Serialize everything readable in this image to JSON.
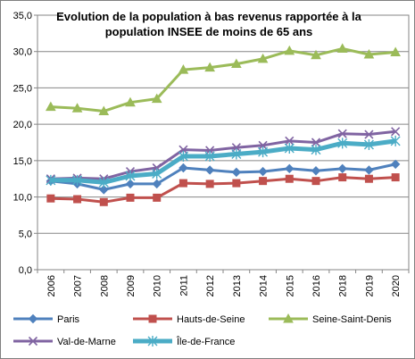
{
  "chart_data": {
    "type": "line",
    "title_lines": [
      "Evolution de la population à bas revenus rapportée à la",
      "population INSEE de moins de 65  ans"
    ],
    "x": [
      "2006",
      "2007",
      "2008",
      "2009",
      "2010",
      "2011",
      "2012",
      "2013",
      "2014",
      "2015",
      "2016",
      "2018",
      "2019",
      "2020"
    ],
    "ylim": [
      0,
      35
    ],
    "yticks": [
      0,
      5,
      10,
      15,
      20,
      25,
      30,
      35
    ],
    "ytick_labels": [
      "0,0",
      "5,0",
      "10,0",
      "15,0",
      "20,0",
      "25,0",
      "30,0",
      "35,0"
    ],
    "grid": true,
    "legend_position": "bottom",
    "series": [
      {
        "name": "Paris",
        "color": "#4f81bd",
        "marker": "diamond",
        "values": [
          12.2,
          11.8,
          11.0,
          11.8,
          11.8,
          14.0,
          13.7,
          13.4,
          13.5,
          13.9,
          13.6,
          13.9,
          13.7,
          14.5
        ]
      },
      {
        "name": "Hauts-de-Seine",
        "color": "#c0504d",
        "marker": "square",
        "values": [
          9.8,
          9.7,
          9.3,
          9.9,
          9.9,
          11.9,
          11.8,
          11.9,
          12.2,
          12.5,
          12.2,
          12.7,
          12.5,
          12.7
        ]
      },
      {
        "name": "Seine-Saint-Denis",
        "color": "#9bbb59",
        "marker": "triangle",
        "values": [
          22.4,
          22.2,
          21.8,
          23.0,
          23.5,
          27.5,
          27.8,
          28.3,
          29.0,
          30.1,
          29.5,
          30.4,
          29.6,
          29.9
        ]
      },
      {
        "name": "Val-de-Marne",
        "color": "#8064a2",
        "marker": "x",
        "values": [
          12.5,
          12.6,
          12.5,
          13.5,
          14.0,
          16.5,
          16.4,
          16.8,
          17.1,
          17.7,
          17.5,
          18.7,
          18.6,
          19.0
        ]
      },
      {
        "name": "Île-de-France",
        "color": "#4bacc6",
        "marker": "star",
        "values": [
          12.3,
          12.3,
          12.0,
          12.9,
          13.2,
          15.6,
          15.6,
          15.9,
          16.2,
          16.7,
          16.5,
          17.4,
          17.2,
          17.7
        ]
      }
    ]
  }
}
